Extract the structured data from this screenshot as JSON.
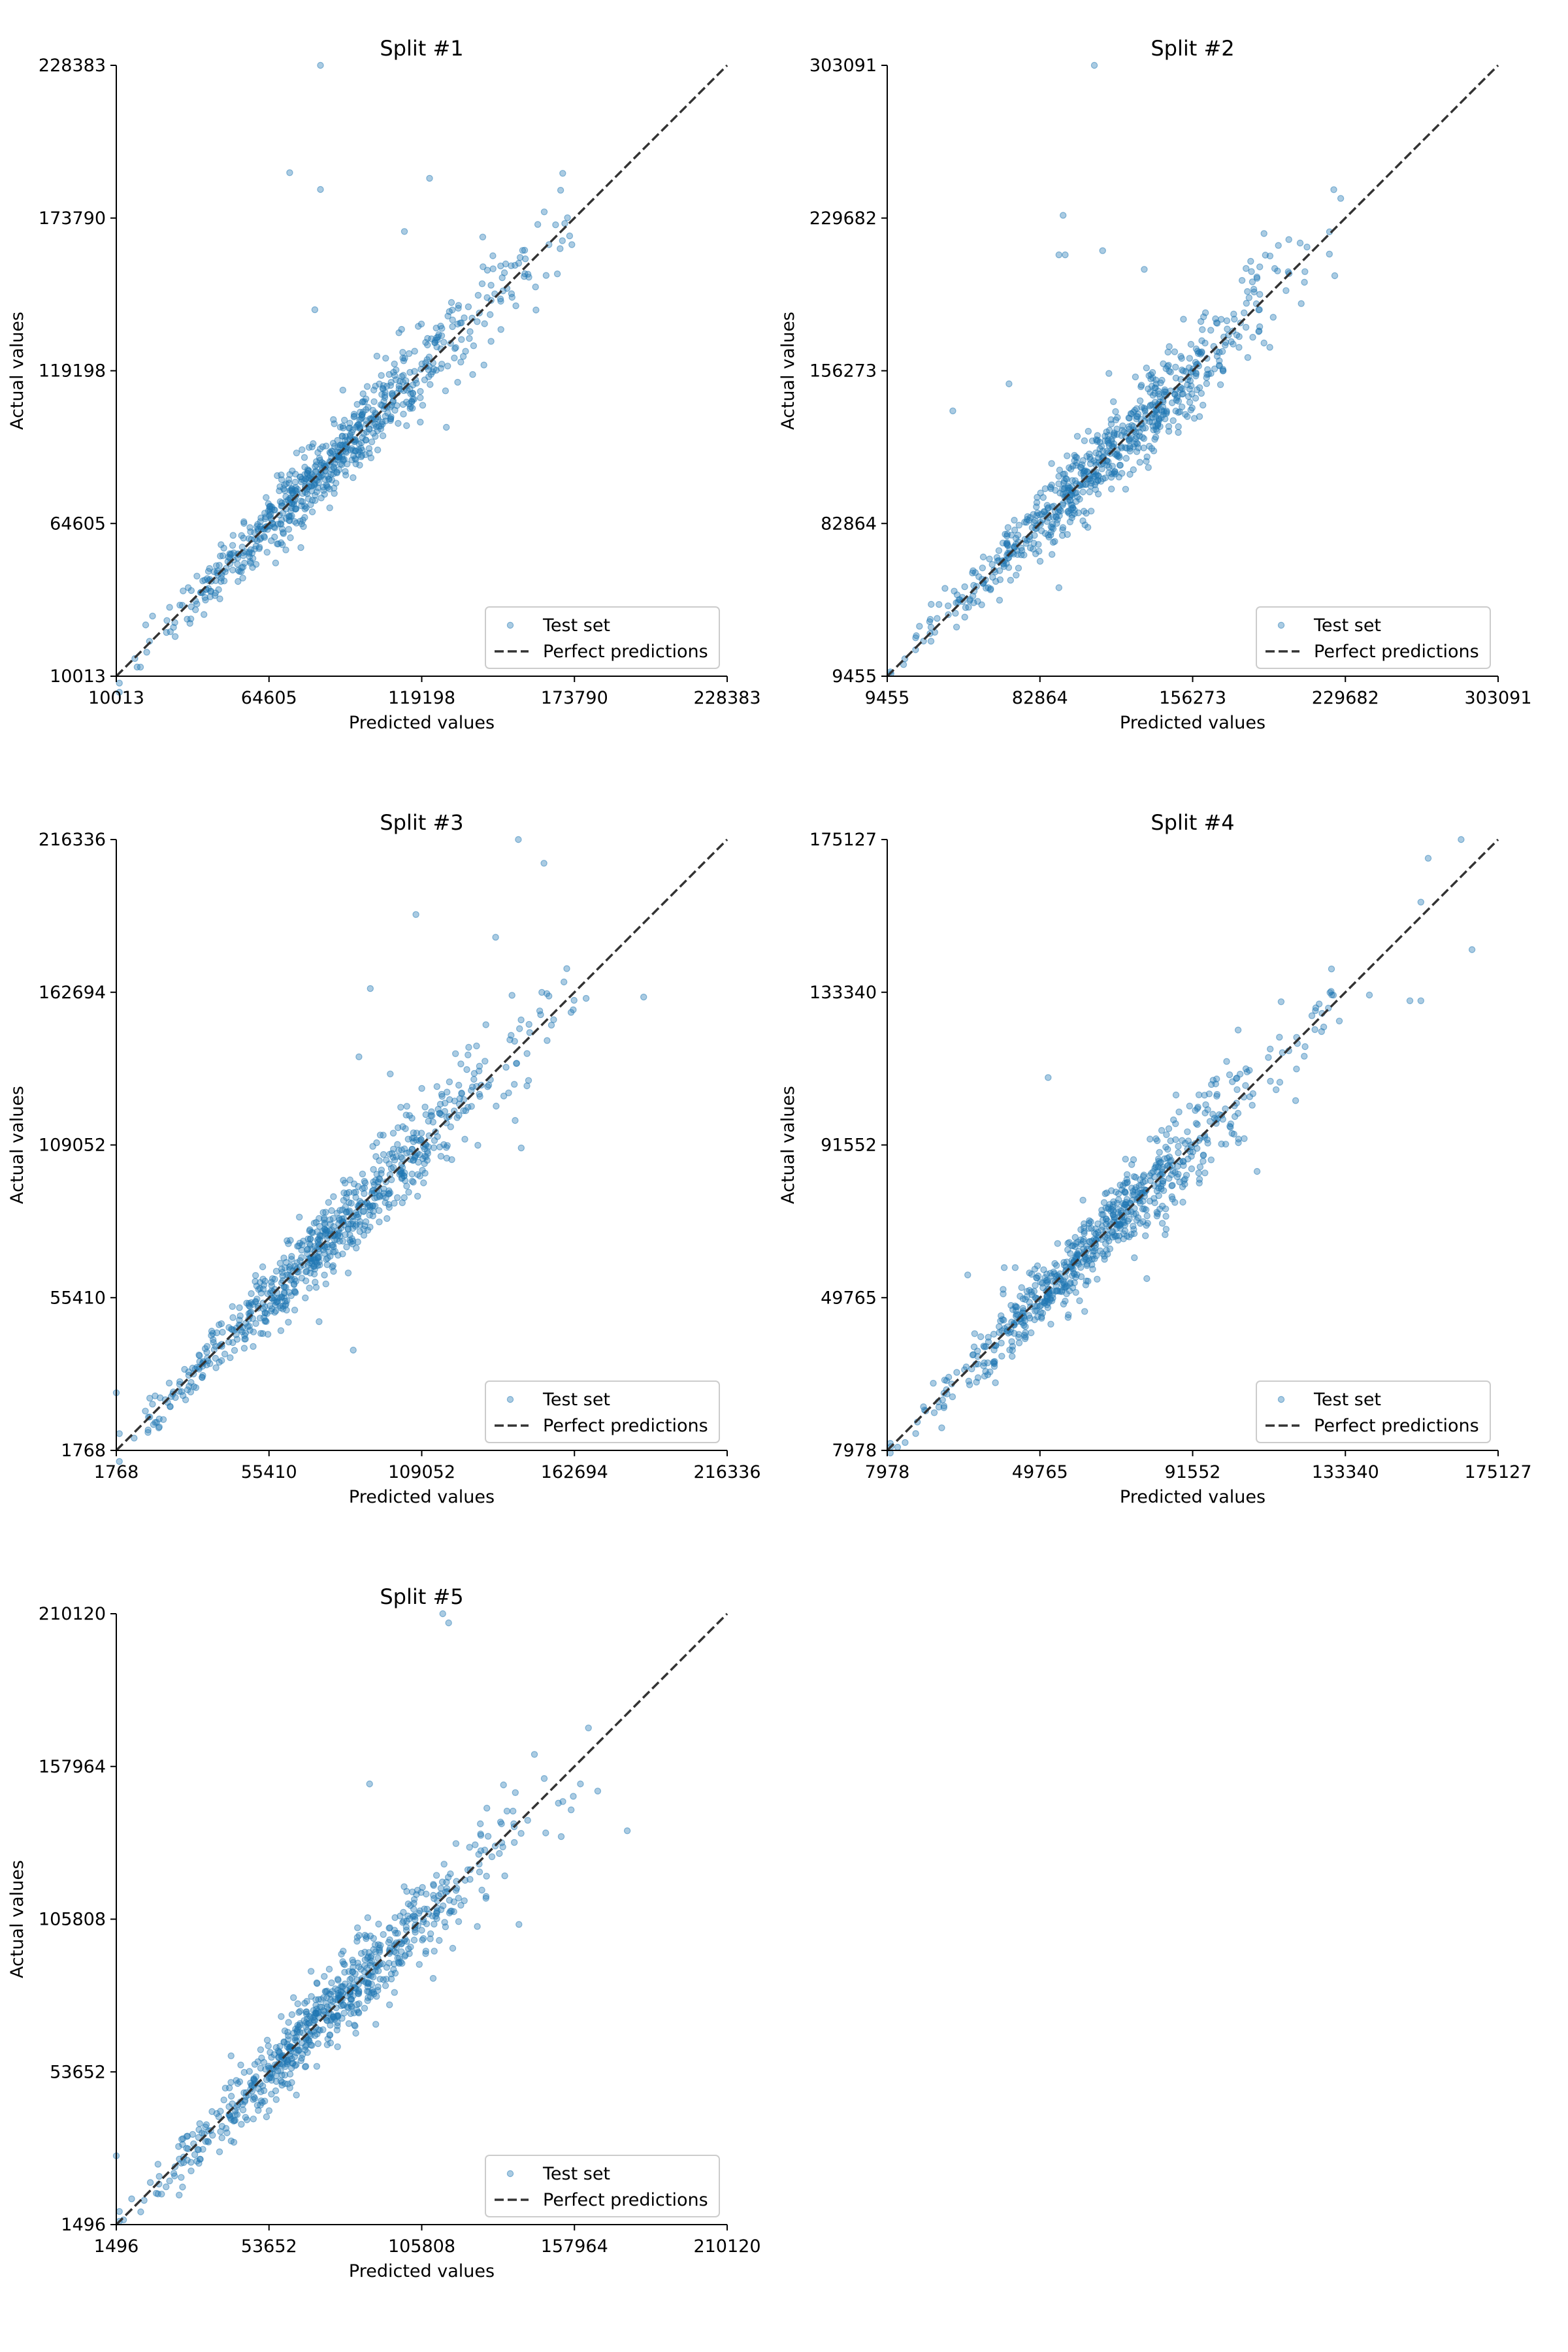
{
  "legend_labels": {
    "test": "Test set",
    "perfect": "Perfect predictions"
  },
  "colors": {
    "points": "#1f77b4",
    "diagonal": "#333333",
    "axes": "#000000"
  },
  "chart_data": [
    {
      "type": "scatter",
      "title": "Split #1",
      "xlabel": "Predicted values",
      "ylabel": "Actual values",
      "xlim": [
        10013,
        228383
      ],
      "ylim": [
        10013,
        228383
      ],
      "xticks": [
        "10013",
        "64605",
        "119198",
        "173790",
        "228383"
      ],
      "yticks": [
        "10013",
        "64605",
        "119198",
        "173790",
        "228383"
      ],
      "legend_position": "lower right",
      "reference_line": "y = x",
      "outliers": [
        [
          83000,
          228383
        ],
        [
          72000,
          190000
        ],
        [
          83000,
          184000
        ],
        [
          122000,
          188000
        ],
        [
          163000,
          176000
        ],
        [
          113000,
          169000
        ],
        [
          141000,
          167000
        ],
        [
          81000,
          141000
        ],
        [
          112000,
          134000
        ],
        [
          98000,
          108000
        ],
        [
          128000,
          99000
        ],
        [
          80000,
          92000
        ],
        [
          76000,
          56000
        ],
        [
          110000,
          116000
        ],
        [
          60000,
          50000
        ]
      ]
    },
    {
      "type": "scatter",
      "title": "Split #2",
      "xlabel": "Predicted values",
      "ylabel": "Actual values",
      "xlim": [
        9455,
        303091
      ],
      "ylim": [
        9455,
        303091
      ],
      "xticks": [
        "9455",
        "82864",
        "156273",
        "229682",
        "303091"
      ],
      "yticks": [
        "9455",
        "82864",
        "156273",
        "229682",
        "303091"
      ],
      "legend_position": "lower right",
      "reference_line": "y = x",
      "outliers": [
        [
          109000,
          303091
        ],
        [
          94000,
          231000
        ],
        [
          92000,
          212000
        ],
        [
          95000,
          212000
        ],
        [
          113000,
          214000
        ],
        [
          133000,
          205000
        ],
        [
          195000,
          182000
        ],
        [
          41000,
          137000
        ],
        [
          68000,
          150000
        ],
        [
          127000,
          130000
        ],
        [
          170000,
          181000
        ],
        [
          92000,
          52000
        ],
        [
          116000,
          155000
        ]
      ]
    },
    {
      "type": "scatter",
      "title": "Split #3",
      "xlabel": "Predicted values",
      "ylabel": "Actual values",
      "xlim": [
        1768,
        216336
      ],
      "ylim": [
        1768,
        216336
      ],
      "xticks": [
        "1768",
        "55410",
        "109052",
        "162694",
        "216336"
      ],
      "yticks": [
        "1768",
        "55410",
        "109052",
        "162694",
        "216336"
      ],
      "legend_position": "lower right",
      "reference_line": "y = x",
      "outliers": [
        [
          143000,
          216336
        ],
        [
          152000,
          208000
        ],
        [
          107000,
          190000
        ],
        [
          91000,
          164000
        ],
        [
          135000,
          182000
        ],
        [
          160000,
          171000
        ],
        [
          187000,
          161000
        ],
        [
          87000,
          140000
        ],
        [
          98000,
          134000
        ],
        [
          144000,
          108000
        ],
        [
          85000,
          37000
        ],
        [
          73000,
          47000
        ],
        [
          1768,
          22000
        ],
        [
          140000,
          146000
        ]
      ]
    },
    {
      "type": "scatter",
      "title": "Split #4",
      "xlabel": "Predicted values",
      "ylabel": "Actual values",
      "xlim": [
        7978,
        175127
      ],
      "ylim": [
        7978,
        175127
      ],
      "xticks": [
        "7978",
        "49765",
        "91552",
        "133340",
        "175127"
      ],
      "yticks": [
        "7978",
        "49765",
        "91552",
        "133340",
        "175127"
      ],
      "legend_position": "lower right",
      "reference_line": "y = x",
      "outliers": [
        [
          165000,
          175127
        ],
        [
          156000,
          170000
        ],
        [
          154000,
          158000
        ],
        [
          168000,
          145000
        ],
        [
          151000,
          131000
        ],
        [
          154000,
          131000
        ],
        [
          104000,
          123000
        ],
        [
          120000,
          121000
        ],
        [
          52000,
          110000
        ],
        [
          84000,
          67000
        ],
        [
          79000,
          55000
        ],
        [
          62000,
          46000
        ],
        [
          30000,
          56000
        ],
        [
          40000,
          58000
        ],
        [
          43000,
          58000
        ]
      ]
    },
    {
      "type": "scatter",
      "title": "Split #5",
      "xlabel": "Predicted values",
      "ylabel": "Actual values",
      "xlim": [
        1496,
        210120
      ],
      "ylim": [
        1496,
        210120
      ],
      "xticks": [
        "1496",
        "53652",
        "105808",
        "157964",
        "210120"
      ],
      "yticks": [
        "1496",
        "53652",
        "105808",
        "157964",
        "210120"
      ],
      "legend_position": "lower right",
      "reference_line": "y = x",
      "outliers": [
        [
          113000,
          210120
        ],
        [
          115000,
          207000
        ],
        [
          88000,
          152000
        ],
        [
          176000,
          136000
        ],
        [
          139000,
          104000
        ],
        [
          154000,
          146000
        ],
        [
          160000,
          152000
        ],
        [
          1496,
          25000
        ],
        [
          30000,
          36000
        ],
        [
          62000,
          79000
        ],
        [
          68000,
          88000
        ]
      ]
    }
  ]
}
